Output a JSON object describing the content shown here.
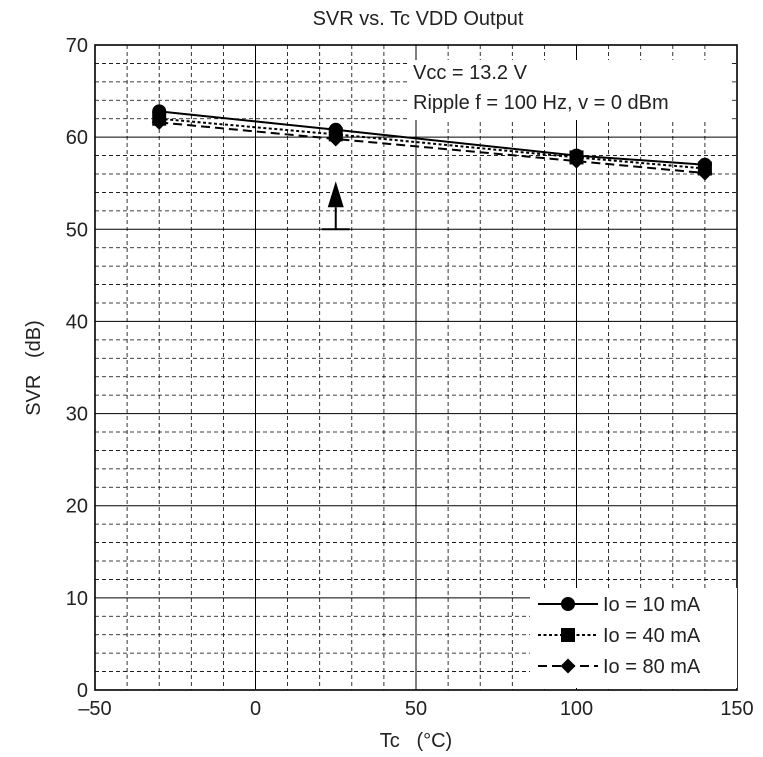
{
  "chart_data": {
    "type": "line",
    "title": "SVR vs. Tc   VDD Output",
    "xlabel": "Tc   (°C)",
    "ylabel": "SVR   (dB)",
    "xlim": [
      -50,
      150
    ],
    "ylim": [
      0,
      70
    ],
    "x_ticks": [
      -50,
      0,
      50,
      100,
      150
    ],
    "x_tick_labels": [
      "–50",
      "0",
      "50",
      "100",
      "150"
    ],
    "y_ticks": [
      0,
      10,
      20,
      30,
      40,
      50,
      60,
      70
    ],
    "y_tick_labels": [
      "0",
      "10",
      "20",
      "30",
      "40",
      "50",
      "60",
      "70"
    ],
    "x_minor_step": 10,
    "y_minor_step": 2,
    "grid": true,
    "legend_position": "bottom-right",
    "annotations": [
      "Vcc = 13.2 V",
      "Ripple  f = 100 Hz, v = 0 dBm"
    ],
    "spec_marker": {
      "x": 25,
      "y": 50,
      "direction": "up"
    },
    "x": [
      -30,
      25,
      100,
      140
    ],
    "series": [
      {
        "name": "Io = 10 mA",
        "values": [
          62.8,
          60.8,
          58.0,
          57.0
        ],
        "line": "solid",
        "marker": "circle"
      },
      {
        "name": "Io = 40 mA",
        "values": [
          62.0,
          60.3,
          57.8,
          56.6
        ],
        "line": "dotted",
        "marker": "square"
      },
      {
        "name": "Io = 80 mA",
        "values": [
          61.6,
          59.8,
          57.4,
          56.1
        ],
        "line": "dashed",
        "marker": "diamond"
      }
    ],
    "colors": {
      "line": "#000000",
      "grid": "#000000",
      "text": "#222222"
    }
  }
}
